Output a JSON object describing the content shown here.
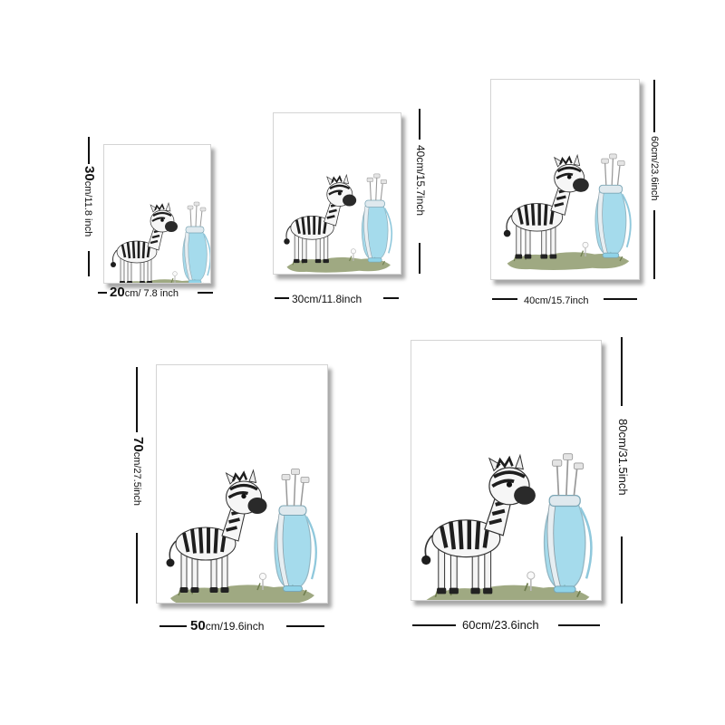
{
  "sizes": [
    {
      "width_label_big": "20",
      "width_label_rest": "cm/ 7.8 inch",
      "height_label_big": "30",
      "height_label_rest": "cm/11.8 inch"
    },
    {
      "width_label_big": "",
      "width_label_rest": "30cm/11.8inch",
      "height_label_big": "",
      "height_label_rest": "40cm/15.7inch"
    },
    {
      "width_label_big": "",
      "width_label_rest": "40cm/15.7inch",
      "height_label_big": "",
      "height_label_rest": "60cm/23.6inch"
    },
    {
      "width_label_big": "50",
      "width_label_rest": "cm/19.6inch",
      "height_label_big": "70",
      "height_label_rest": "cm/27.5inch"
    },
    {
      "width_label_big": "",
      "width_label_rest": "60cm/23.6inch",
      "height_label_big": "",
      "height_label_rest": "80cm/31.5inch"
    }
  ],
  "colors": {
    "grass": "#8e9a6c",
    "bag_blue": "#8fd3e8",
    "zebra_stripe": "#1e1e1e",
    "zebra_nose": "#2a2a2a"
  },
  "artwork": "zebra-with-golf-bag-icon"
}
